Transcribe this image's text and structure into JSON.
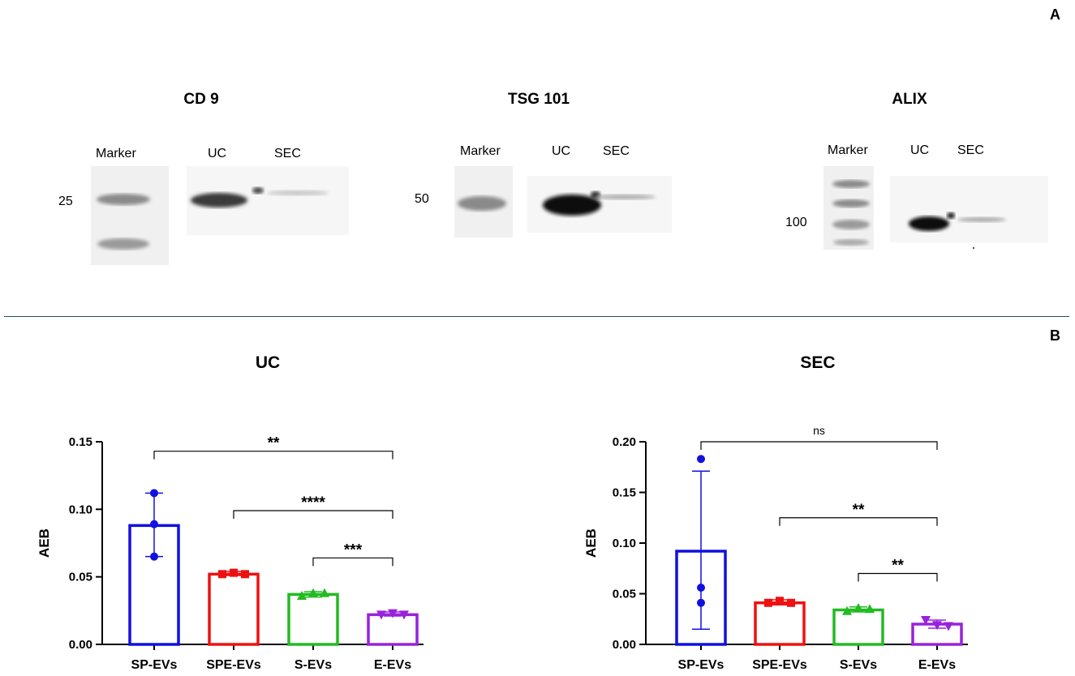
{
  "panel_a": {
    "letter": "A",
    "blots": [
      {
        "title": "CD 9",
        "lanes": [
          "Marker",
          "UC",
          "SEC"
        ],
        "mw": "25"
      },
      {
        "title": "TSG 101",
        "lanes": [
          "Marker",
          "UC",
          "SEC"
        ],
        "mw": "50"
      },
      {
        "title": "ALIX",
        "lanes": [
          "Marker",
          "UC",
          "SEC"
        ],
        "mw": "100"
      }
    ]
  },
  "panel_b": {
    "letter": "B"
  },
  "chart_data": [
    {
      "type": "bar",
      "title": "UC",
      "ylabel": "AEB",
      "xlabel": "",
      "categories": [
        "SP-EVs",
        "SPE-EVs",
        "S-EVs",
        "E-EVs"
      ],
      "values": [
        0.088,
        0.052,
        0.037,
        0.022
      ],
      "error_low": [
        0.065,
        0.051,
        0.035,
        0.021
      ],
      "error_high": [
        0.112,
        0.054,
        0.039,
        0.024
      ],
      "points": [
        [
          0.112,
          0.089,
          0.065
        ],
        [
          0.052,
          0.053,
          0.052
        ],
        [
          0.036,
          0.038,
          0.038
        ],
        [
          0.022,
          0.023,
          0.022
        ]
      ],
      "ylim": [
        0,
        0.15
      ],
      "yticks": [
        "0.00",
        "0.05",
        "0.10",
        "0.15"
      ],
      "colors": [
        "#1010e0",
        "#ee1111",
        "#22bb22",
        "#9922dd"
      ],
      "markers": [
        "circle",
        "square",
        "triangle-up",
        "triangle-down"
      ],
      "comparisons": [
        {
          "from": 0,
          "to": 3,
          "label": "**",
          "y": 0.143
        },
        {
          "from": 1,
          "to": 3,
          "label": "****",
          "y": 0.099
        },
        {
          "from": 2,
          "to": 3,
          "label": "***",
          "y": 0.064
        }
      ]
    },
    {
      "type": "bar",
      "title": "SEC",
      "ylabel": "AEB",
      "xlabel": "",
      "categories": [
        "SP-EVs",
        "SPE-EVs",
        "S-EVs",
        "E-EVs"
      ],
      "values": [
        0.092,
        0.041,
        0.034,
        0.02
      ],
      "error_low": [
        0.015,
        0.039,
        0.032,
        0.016
      ],
      "error_high": [
        0.171,
        0.044,
        0.037,
        0.024
      ],
      "points": [
        [
          0.183,
          0.056,
          0.041
        ],
        [
          0.041,
          0.043,
          0.041
        ],
        [
          0.033,
          0.036,
          0.035
        ],
        [
          0.024,
          0.019,
          0.018
        ]
      ],
      "ylim": [
        0,
        0.2
      ],
      "yticks": [
        "0.00",
        "0.05",
        "0.10",
        "0.15",
        "0.20"
      ],
      "colors": [
        "#1010e0",
        "#ee1111",
        "#22bb22",
        "#9922dd"
      ],
      "markers": [
        "circle",
        "square",
        "triangle-up",
        "triangle-down"
      ],
      "comparisons": [
        {
          "from": 0,
          "to": 3,
          "label": "ns",
          "y": 0.2
        },
        {
          "from": 1,
          "to": 3,
          "label": "**",
          "y": 0.125
        },
        {
          "from": 2,
          "to": 3,
          "label": "**",
          "y": 0.07
        }
      ]
    }
  ]
}
